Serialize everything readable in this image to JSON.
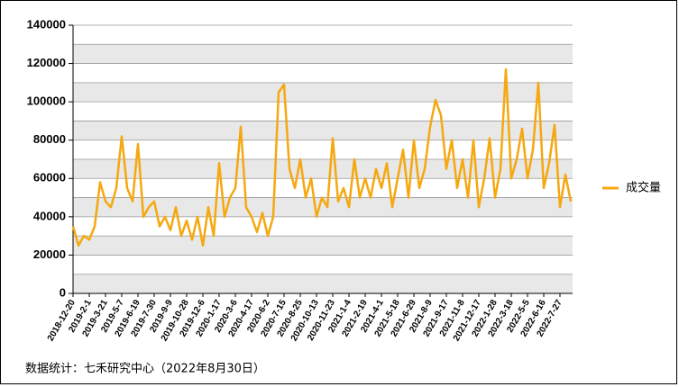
{
  "chart_data": {
    "type": "line",
    "categories": [
      "2018-12-20",
      null,
      null,
      "2019-2-1",
      null,
      null,
      "2019-3-21",
      null,
      null,
      "2019-5-7",
      null,
      null,
      "2019-6-19",
      null,
      null,
      "2019-7-30",
      null,
      null,
      "2019-9-9",
      null,
      null,
      "2019-10-28",
      null,
      null,
      "2019-12-6",
      null,
      null,
      "2020-1-17",
      null,
      null,
      "2020-3-6",
      null,
      null,
      "2020-4-17",
      null,
      null,
      "2020-6-2",
      null,
      null,
      "2020-7-15",
      null,
      null,
      "2020-8-25",
      null,
      null,
      "2020-10-13",
      null,
      null,
      "2020-11-23",
      null,
      null,
      "2021-1-4",
      null,
      null,
      "2021-2-19",
      null,
      null,
      "2021-4-1",
      null,
      null,
      "2021-5-18",
      null,
      null,
      "2021-6-29",
      null,
      null,
      "2021-8-9",
      null,
      null,
      "2021-9-17",
      null,
      null,
      "2021-11-8",
      null,
      null,
      "2021-12-17",
      null,
      null,
      "2022-1-28",
      null,
      null,
      "2022-3-18",
      null,
      null,
      "2022-5-5",
      null,
      null,
      "2022-6-16",
      null,
      null,
      "2022-7-27",
      null,
      null
    ],
    "series": [
      {
        "name": "成交量",
        "color": "#f5a810",
        "values": [
          35000,
          25000,
          30000,
          28000,
          35000,
          58000,
          48000,
          45000,
          55000,
          82000,
          55000,
          48000,
          78000,
          40000,
          45000,
          48000,
          35000,
          40000,
          33000,
          45000,
          30000,
          38000,
          28000,
          40000,
          25000,
          45000,
          30000,
          68000,
          40000,
          50000,
          55000,
          87000,
          45000,
          40000,
          32000,
          42000,
          30000,
          40000,
          105000,
          109000,
          65000,
          55000,
          70000,
          50000,
          60000,
          40000,
          50000,
          45000,
          81000,
          48000,
          55000,
          45000,
          70000,
          50000,
          60000,
          50000,
          65000,
          55000,
          68000,
          45000,
          60000,
          75000,
          50000,
          80000,
          55000,
          65000,
          87000,
          101000,
          93000,
          65000,
          80000,
          55000,
          70000,
          50000,
          80000,
          45000,
          60000,
          81000,
          50000,
          65000,
          117000,
          60000,
          70000,
          86000,
          60000,
          75000,
          110000,
          55000,
          68000,
          88000,
          45000,
          62000,
          48000
        ]
      }
    ],
    "ylim": [
      0,
      140000
    ],
    "yticks": [
      0,
      20000,
      40000,
      60000,
      80000,
      100000,
      120000,
      140000
    ],
    "grid": true,
    "legend": "right",
    "footer": "数据统计：七禾研究中心（2022年8月30日）"
  }
}
